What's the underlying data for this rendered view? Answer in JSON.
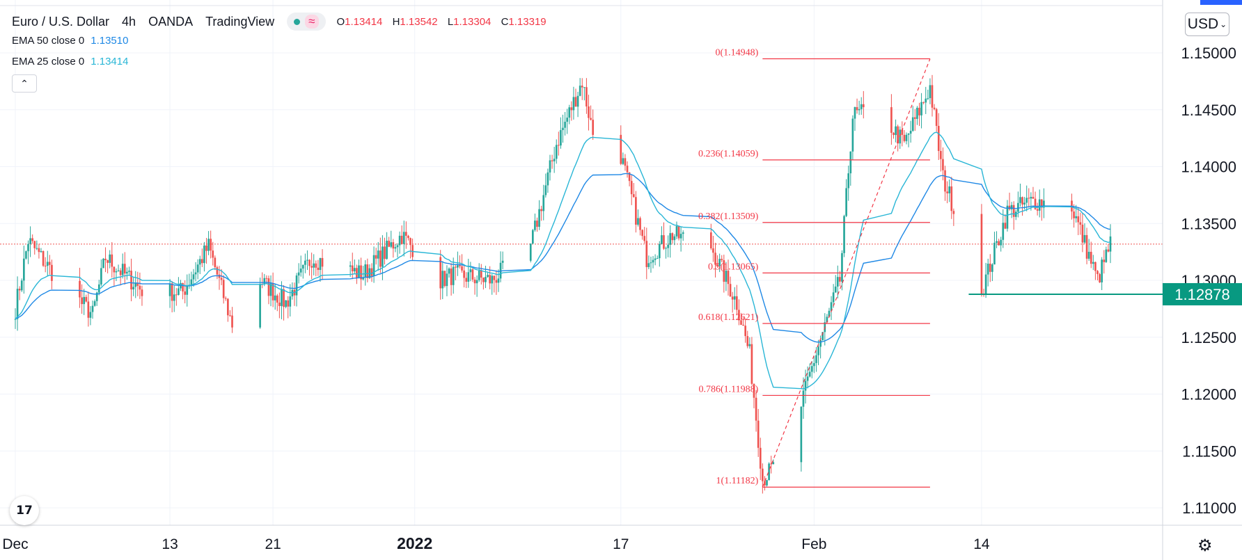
{
  "header": {
    "symbol": "Euro / U.S. Dollar",
    "interval": "4h",
    "exchange": "OANDA",
    "source": "TradingView",
    "ohlc": {
      "o_label": "O",
      "o": "1.13414",
      "h_label": "H",
      "h": "1.13542",
      "l_label": "L",
      "l": "1.13304",
      "c_label": "C",
      "c": "1.13319"
    }
  },
  "legend": [
    {
      "label": "EMA 50 close 0",
      "value": "1.13510",
      "color": "#1e88e5"
    },
    {
      "label": "EMA 25 close 0",
      "value": "1.13414",
      "color": "#29b6d6"
    }
  ],
  "currency_selector": {
    "label": "USD"
  },
  "colors": {
    "up": "#26a69a",
    "down": "#ef5350",
    "fib": "#f23645",
    "ema50": "#1e88e5",
    "ema25": "#29b6d6",
    "support": "#089981",
    "grid": "#f0f3fa"
  },
  "icons": {
    "collapse": "chevron-up-icon",
    "logo": "tradingview-logo-icon",
    "settings": "gear-icon"
  },
  "chart_data": {
    "type": "candlestick",
    "title": "Euro / U.S. Dollar",
    "x_range_dates": [
      "2021-12-01",
      "2022-02-24"
    ],
    "x_ticks": [
      {
        "label": "Dec",
        "date": "2021-12-01"
      },
      {
        "label": "13",
        "date": "2021-12-13"
      },
      {
        "label": "21",
        "date": "2021-12-21"
      },
      {
        "label": "2022",
        "date": "2022-01-01"
      },
      {
        "label": "17",
        "date": "2022-01-17"
      },
      {
        "label": "Feb",
        "date": "2022-02-01"
      },
      {
        "label": "14",
        "date": "2022-02-14"
      }
    ],
    "y_range": [
      1.107,
      1.154
    ],
    "y_ticks": [
      "1.15000",
      "1.14500",
      "1.14000",
      "1.13500",
      "1.13000",
      "1.12500",
      "1.12000",
      "1.11500",
      "1.11000"
    ],
    "current_price": 1.13319,
    "support_level": {
      "value": 1.12878,
      "label": "1.12878"
    },
    "fibonacci": [
      {
        "label": "0(1.14948)",
        "value": 1.14948
      },
      {
        "label": "0.236(1.14059)",
        "value": 1.14059
      },
      {
        "label": "0.382(1.13509)",
        "value": 1.13509
      },
      {
        "label": "0.5(1.13065)",
        "value": 1.13065
      },
      {
        "label": "0.618(1.12621)",
        "value": 1.12621
      },
      {
        "label": "0.786(1.11988)",
        "value": 1.11988
      },
      {
        "label": "1(1.11182)",
        "value": 1.11182
      }
    ],
    "fib_trend_from": {
      "date": "2022-01-28",
      "price": 1.11182
    },
    "fib_trend_to": {
      "date": "2022-02-10",
      "price": 1.14948
    },
    "fib_right_date": "2022-02-10",
    "waypoints": [
      [
        "2021-12-01",
        1.1275
      ],
      [
        "2021-12-02",
        1.1335
      ],
      [
        "2021-12-04",
        1.1305
      ],
      [
        "2021-12-07",
        1.127
      ],
      [
        "2021-12-08",
        1.132
      ],
      [
        "2021-12-11",
        1.129
      ],
      [
        "2021-12-14",
        1.129
      ],
      [
        "2021-12-16",
        1.133
      ],
      [
        "2021-12-18",
        1.1255
      ],
      [
        "2021-12-20",
        1.13
      ],
      [
        "2021-12-22",
        1.128
      ],
      [
        "2021-12-24",
        1.132
      ],
      [
        "2021-12-28",
        1.1305
      ],
      [
        "2021-12-31",
        1.134
      ],
      [
        "2022-01-03",
        1.13
      ],
      [
        "2022-01-04",
        1.1305
      ],
      [
        "2022-01-07",
        1.13
      ],
      [
        "2022-01-10",
        1.133
      ],
      [
        "2022-01-12",
        1.142
      ],
      [
        "2022-01-14",
        1.1475
      ],
      [
        "2022-01-15",
        1.142
      ],
      [
        "2022-01-17",
        1.141
      ],
      [
        "2022-01-19",
        1.132
      ],
      [
        "2022-01-21",
        1.134
      ],
      [
        "2022-01-24",
        1.133
      ],
      [
        "2022-01-26",
        1.128
      ],
      [
        "2022-01-27",
        1.1235
      ],
      [
        "2022-01-28",
        1.1125
      ],
      [
        "2022-01-30",
        1.115
      ],
      [
        "2022-02-01",
        1.123
      ],
      [
        "2022-02-03",
        1.13
      ],
      [
        "2022-02-04",
        1.1445
      ],
      [
        "2022-02-06",
        1.145
      ],
      [
        "2022-02-08",
        1.142
      ],
      [
        "2022-02-10",
        1.147
      ],
      [
        "2022-02-11",
        1.139
      ],
      [
        "2022-02-13",
        1.133
      ],
      [
        "2022-02-14",
        1.129
      ],
      [
        "2022-02-16",
        1.136
      ],
      [
        "2022-02-18",
        1.137
      ],
      [
        "2022-02-21",
        1.1365
      ],
      [
        "2022-02-23",
        1.13
      ],
      [
        "2022-02-24",
        1.1332
      ]
    ]
  }
}
